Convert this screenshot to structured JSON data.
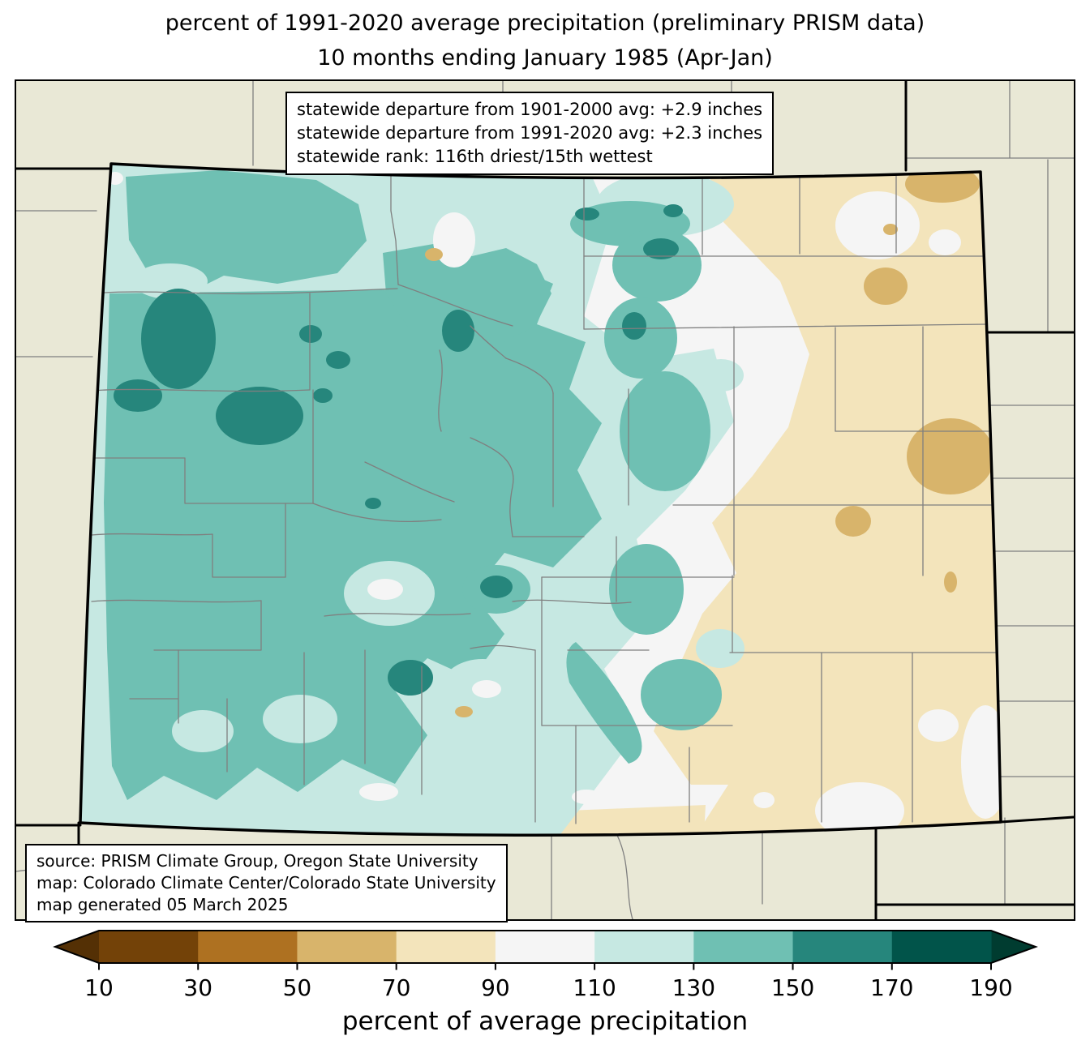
{
  "title": {
    "line1": "percent of 1991-2020 average precipitation (preliminary PRISM data)",
    "line2": "10 months ending January 1985 (Apr-Jan)"
  },
  "stats_box": {
    "line1": "statewide departure from 1901-2000 avg: +2.9 inches",
    "line2": "statewide departure from 1991-2020 avg: +2.3 inches",
    "line3": "statewide rank: 116th driest/15th wettest"
  },
  "source_box": {
    "line1": "source: PRISM Climate Group, Oregon State University",
    "line2": "map: Colorado Climate Center/Colorado State University",
    "line3": "map generated 05 March 2025"
  },
  "map": {
    "region": "Colorado with county boundaries",
    "outside_fill": "#e9e8d6",
    "county_line_color": "#7f7f7f",
    "state_line_color": "#000000",
    "fill_colors": {
      "lt10": "#543005",
      "b10_30": "#734208",
      "b30_50": "#ae7121",
      "b50_70": "#d8b46b",
      "b70_90": "#f3e4bb",
      "b90_110": "#f5f5f5",
      "b110_130": "#c6e8e2",
      "b130_150": "#6fc0b3",
      "b150_170": "#26867c",
      "b170_190": "#01544a",
      "gt190": "#003c30"
    }
  },
  "colorbar": {
    "label": "percent of average precipitation",
    "ticks": [
      10,
      30,
      50,
      70,
      90,
      110,
      130,
      150,
      170,
      190
    ],
    "segment_colors": [
      "#734208",
      "#ae7121",
      "#d8b46b",
      "#f3e4bb",
      "#f5f5f5",
      "#c6e8e2",
      "#6fc0b3",
      "#26867c",
      "#01544a"
    ],
    "under_arrow_color": "#543005",
    "over_arrow_color": "#003c30"
  }
}
